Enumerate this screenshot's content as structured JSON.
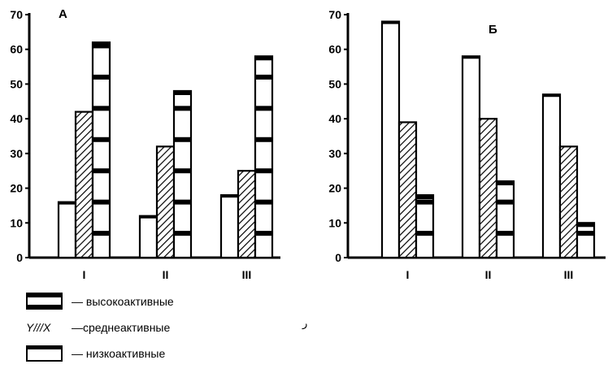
{
  "chart_data": [
    {
      "type": "bar",
      "panel_label": "А",
      "categories": [
        "I",
        "II",
        "III"
      ],
      "series": [
        {
          "key": "low",
          "values": [
            16,
            12,
            18
          ]
        },
        {
          "key": "mid",
          "values": [
            42,
            32,
            25
          ]
        },
        {
          "key": "high",
          "values": [
            62,
            48,
            58
          ]
        }
      ],
      "yticks": [
        "0",
        "10",
        "20",
        "30",
        "40",
        "50",
        "60",
        "70"
      ],
      "ylim": [
        0,
        70
      ],
      "grid": false
    },
    {
      "type": "bar",
      "panel_label": "Б",
      "categories": [
        "I",
        "II",
        "III"
      ],
      "series": [
        {
          "key": "low",
          "values": [
            68,
            58,
            47
          ]
        },
        {
          "key": "mid",
          "values": [
            39,
            40,
            32
          ]
        },
        {
          "key": "high",
          "values": [
            18,
            22,
            10
          ]
        }
      ],
      "yticks": [
        "0",
        "10",
        "20",
        "30",
        "40",
        "50",
        "60",
        "70"
      ],
      "ylim": [
        0,
        70
      ],
      "grid": false
    }
  ],
  "legend": {
    "placement": "bottom-left",
    "items": [
      {
        "key": "high",
        "label": "— высокоактивные"
      },
      {
        "key": "mid",
        "label": "—среднеактивные",
        "swatch_text": "Y///X"
      },
      {
        "key": "low",
        "label": "— низкоактивные"
      }
    ]
  },
  "stray_mark": "ر"
}
